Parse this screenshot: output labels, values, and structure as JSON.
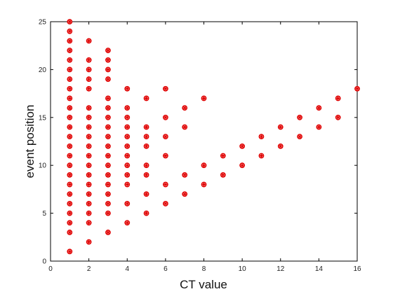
{
  "chart_data": {
    "type": "scatter",
    "title": "",
    "xlabel": "CT value",
    "ylabel": "event position",
    "xlim": [
      0,
      16
    ],
    "ylim": [
      0,
      25
    ],
    "xticks": [
      0,
      2,
      4,
      6,
      8,
      10,
      12,
      14,
      16
    ],
    "yticks": [
      0,
      5,
      10,
      15,
      20,
      25
    ],
    "grid": false,
    "marker_color": "#e00000",
    "marker": "asterisk-circle",
    "points": [
      [
        1,
        1
      ],
      [
        1,
        3
      ],
      [
        1,
        4
      ],
      [
        1,
        5
      ],
      [
        1,
        6
      ],
      [
        1,
        7
      ],
      [
        1,
        8
      ],
      [
        1,
        9
      ],
      [
        1,
        10
      ],
      [
        1,
        11
      ],
      [
        1,
        12
      ],
      [
        1,
        13
      ],
      [
        1,
        14
      ],
      [
        1,
        15
      ],
      [
        1,
        16
      ],
      [
        1,
        17
      ],
      [
        1,
        18
      ],
      [
        1,
        19
      ],
      [
        1,
        20
      ],
      [
        1,
        21
      ],
      [
        1,
        22
      ],
      [
        1,
        23
      ],
      [
        1,
        24
      ],
      [
        1,
        25
      ],
      [
        2,
        2
      ],
      [
        2,
        4
      ],
      [
        2,
        5
      ],
      [
        2,
        6
      ],
      [
        2,
        7
      ],
      [
        2,
        8
      ],
      [
        2,
        9
      ],
      [
        2,
        10
      ],
      [
        2,
        11
      ],
      [
        2,
        12
      ],
      [
        2,
        13
      ],
      [
        2,
        14
      ],
      [
        2,
        15
      ],
      [
        2,
        16
      ],
      [
        2,
        18
      ],
      [
        2,
        19
      ],
      [
        2,
        20
      ],
      [
        2,
        21
      ],
      [
        2,
        23
      ],
      [
        3,
        3
      ],
      [
        3,
        5
      ],
      [
        3,
        6
      ],
      [
        3,
        7
      ],
      [
        3,
        8
      ],
      [
        3,
        9
      ],
      [
        3,
        10
      ],
      [
        3,
        11
      ],
      [
        3,
        12
      ],
      [
        3,
        13
      ],
      [
        3,
        14
      ],
      [
        3,
        15
      ],
      [
        3,
        16
      ],
      [
        3,
        17
      ],
      [
        3,
        19
      ],
      [
        3,
        20
      ],
      [
        3,
        21
      ],
      [
        3,
        22
      ],
      [
        4,
        4
      ],
      [
        4,
        6
      ],
      [
        4,
        8
      ],
      [
        4,
        9
      ],
      [
        4,
        10
      ],
      [
        4,
        11
      ],
      [
        4,
        12
      ],
      [
        4,
        13
      ],
      [
        4,
        14
      ],
      [
        4,
        15
      ],
      [
        4,
        16
      ],
      [
        4,
        18
      ],
      [
        5,
        5
      ],
      [
        5,
        7
      ],
      [
        5,
        9
      ],
      [
        5,
        10
      ],
      [
        5,
        12
      ],
      [
        5,
        13
      ],
      [
        5,
        14
      ],
      [
        5,
        17
      ],
      [
        6,
        6
      ],
      [
        6,
        8
      ],
      [
        6,
        11
      ],
      [
        6,
        13
      ],
      [
        6,
        15
      ],
      [
        6,
        18
      ],
      [
        7,
        7
      ],
      [
        7,
        9
      ],
      [
        7,
        14
      ],
      [
        7,
        16
      ],
      [
        8,
        8
      ],
      [
        8,
        10
      ],
      [
        8,
        17
      ],
      [
        9,
        9
      ],
      [
        9,
        11
      ],
      [
        10,
        10
      ],
      [
        10,
        12
      ],
      [
        11,
        11
      ],
      [
        11,
        13
      ],
      [
        12,
        12
      ],
      [
        12,
        14
      ],
      [
        13,
        13
      ],
      [
        13,
        15
      ],
      [
        14,
        14
      ],
      [
        14,
        16
      ],
      [
        15,
        15
      ],
      [
        15,
        17
      ],
      [
        16,
        18
      ]
    ]
  }
}
